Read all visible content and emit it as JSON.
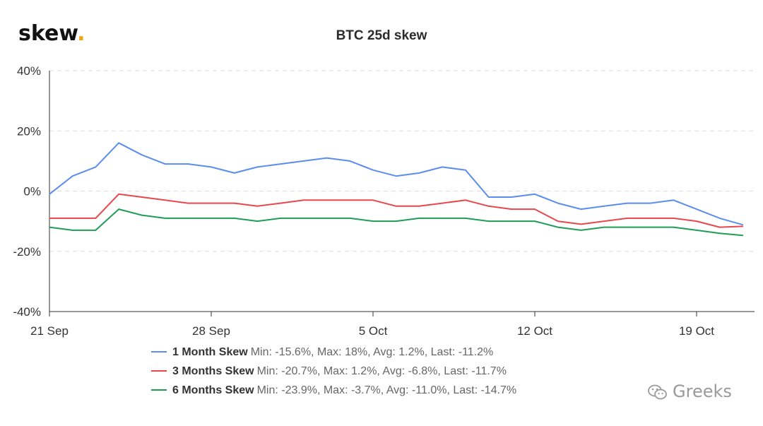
{
  "header": {
    "logo_text": "skew",
    "logo_dot": "."
  },
  "watermark": {
    "text": "Greeks"
  },
  "chart_data": {
    "type": "line",
    "title": "BTC 25d skew",
    "x_ticks": [
      "21 Sep",
      "28 Sep",
      "5 Oct",
      "12 Oct",
      "19 Oct"
    ],
    "x_domain": [
      "2020-09-21",
      "2020-10-21"
    ],
    "y_ticks": [
      "40%",
      "20%",
      "0%",
      "-20%",
      "-40%"
    ],
    "ylim": [
      -40,
      40
    ],
    "grid": true,
    "legend_position": "bottom",
    "series": [
      {
        "name": "1 Month Skew",
        "stats": "Min: -15.6%, Max: 18%, Avg: 1.2%, Last: -11.2%",
        "color": "#5b8def",
        "x": [
          "2020-09-21",
          "2020-09-22",
          "2020-09-23",
          "2020-09-24",
          "2020-09-25",
          "2020-09-26",
          "2020-09-27",
          "2020-09-28",
          "2020-09-29",
          "2020-09-30",
          "2020-10-01",
          "2020-10-02",
          "2020-10-03",
          "2020-10-04",
          "2020-10-05",
          "2020-10-06",
          "2020-10-07",
          "2020-10-08",
          "2020-10-09",
          "2020-10-10",
          "2020-10-11",
          "2020-10-12",
          "2020-10-13",
          "2020-10-14",
          "2020-10-15",
          "2020-10-16",
          "2020-10-17",
          "2020-10-18",
          "2020-10-19",
          "2020-10-20",
          "2020-10-21"
        ],
        "values": [
          -1,
          5,
          8,
          16,
          12,
          9,
          9,
          8,
          6,
          8,
          9,
          10,
          11,
          10,
          7,
          5,
          6,
          8,
          7,
          -2,
          -2,
          -1,
          -4,
          -6,
          -5,
          -4,
          -4,
          -3,
          -6,
          -9,
          -11.2
        ]
      },
      {
        "name": "3 Months Skew",
        "stats": "Min: -20.7%, Max: 1.2%, Avg: -6.8%, Last: -11.7%",
        "color": "#e8474c",
        "x": [
          "2020-09-21",
          "2020-09-22",
          "2020-09-23",
          "2020-09-24",
          "2020-09-25",
          "2020-09-26",
          "2020-09-27",
          "2020-09-28",
          "2020-09-29",
          "2020-09-30",
          "2020-10-01",
          "2020-10-02",
          "2020-10-03",
          "2020-10-04",
          "2020-10-05",
          "2020-10-06",
          "2020-10-07",
          "2020-10-08",
          "2020-10-09",
          "2020-10-10",
          "2020-10-11",
          "2020-10-12",
          "2020-10-13",
          "2020-10-14",
          "2020-10-15",
          "2020-10-16",
          "2020-10-17",
          "2020-10-18",
          "2020-10-19",
          "2020-10-20",
          "2020-10-21"
        ],
        "values": [
          -9,
          -9,
          -9,
          -1,
          -2,
          -3,
          -4,
          -4,
          -4,
          -5,
          -4,
          -3,
          -3,
          -3,
          -3,
          -5,
          -5,
          -4,
          -3,
          -5,
          -6,
          -6,
          -10,
          -11,
          -10,
          -9,
          -9,
          -9,
          -10,
          -12,
          -11.7
        ]
      },
      {
        "name": "6 Months Skew",
        "stats": "Min: -23.9%, Max: -3.7%, Avg: -11.0%, Last: -14.7%",
        "color": "#1f9d55",
        "x": [
          "2020-09-21",
          "2020-09-22",
          "2020-09-23",
          "2020-09-24",
          "2020-09-25",
          "2020-09-26",
          "2020-09-27",
          "2020-09-28",
          "2020-09-29",
          "2020-09-30",
          "2020-10-01",
          "2020-10-02",
          "2020-10-03",
          "2020-10-04",
          "2020-10-05",
          "2020-10-06",
          "2020-10-07",
          "2020-10-08",
          "2020-10-09",
          "2020-10-10",
          "2020-10-11",
          "2020-10-12",
          "2020-10-13",
          "2020-10-14",
          "2020-10-15",
          "2020-10-16",
          "2020-10-17",
          "2020-10-18",
          "2020-10-19",
          "2020-10-20",
          "2020-10-21"
        ],
        "values": [
          -12,
          -13,
          -13,
          -6,
          -8,
          -9,
          -9,
          -9,
          -9,
          -10,
          -9,
          -9,
          -9,
          -9,
          -10,
          -10,
          -9,
          -9,
          -9,
          -10,
          -10,
          -10,
          -12,
          -13,
          -12,
          -12,
          -12,
          -12,
          -13,
          -14,
          -14.7
        ]
      }
    ]
  }
}
